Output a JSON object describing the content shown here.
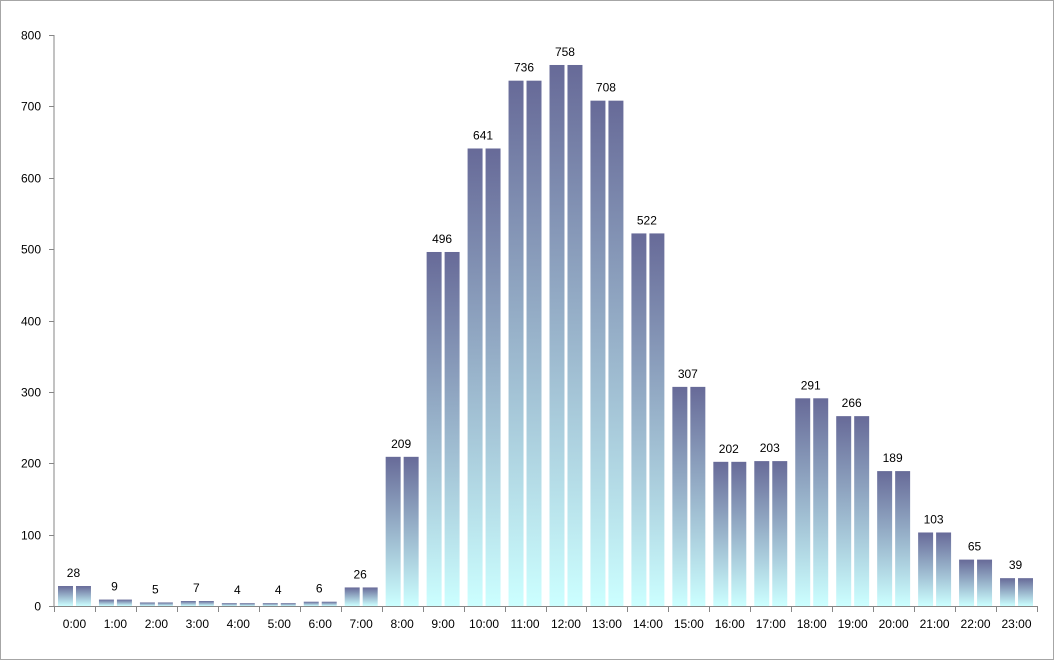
{
  "chart_data": {
    "type": "bar",
    "title": "",
    "xlabel": "",
    "ylabel": "",
    "ylim": [
      0,
      800
    ],
    "yticks": [
      "0",
      "100",
      "200",
      "300",
      "400",
      "500",
      "600",
      "700",
      "800"
    ],
    "grid": false,
    "legend": "none",
    "categories": [
      "0:00",
      "1:00",
      "2:00",
      "3:00",
      "4:00",
      "5:00",
      "6:00",
      "7:00",
      "8:00",
      "9:00",
      "10:00",
      "11:00",
      "12:00",
      "13:00",
      "14:00",
      "15:00",
      "16:00",
      "17:00",
      "18:00",
      "19:00",
      "20:00",
      "21:00",
      "22:00",
      "23:00"
    ],
    "series": [
      {
        "values": [
          28,
          9,
          5,
          7,
          4,
          4,
          6,
          26,
          209,
          496,
          641,
          736,
          758,
          708,
          522,
          307,
          202,
          203,
          291,
          266,
          189,
          103,
          65,
          39
        ]
      },
      {
        "values": [
          28,
          9,
          5,
          7,
          4,
          4,
          6,
          26,
          209,
          496,
          641,
          736,
          758,
          708,
          522,
          307,
          202,
          203,
          291,
          266,
          189,
          103,
          65,
          39
        ]
      }
    ],
    "data_labels": [
      "28",
      "9",
      "5",
      "7",
      "4",
      "4",
      "6",
      "26",
      "209",
      "496",
      "641",
      "736",
      "758",
      "708",
      "522",
      "307",
      "202",
      "203",
      "291",
      "266",
      "189",
      "103",
      "65",
      "39"
    ],
    "colors": {
      "bar_top": "#676a98",
      "bar_bottom": "#ccffff",
      "axis": "#868686"
    }
  }
}
